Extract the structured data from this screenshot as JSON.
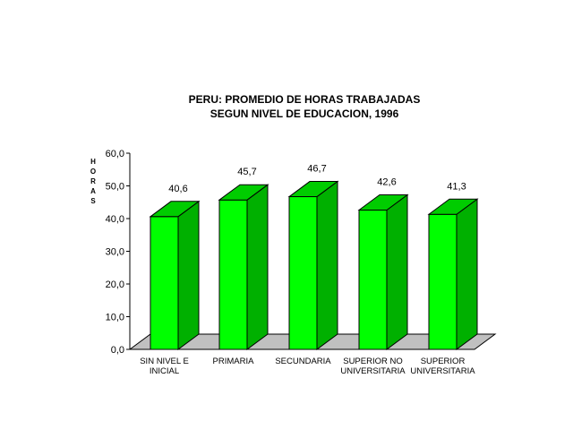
{
  "chart_data": {
    "type": "bar",
    "title": [
      "PERU: PROMEDIO DE HORAS TRABAJADAS",
      "SEGUN NIVEL DE EDUCACION, 1996"
    ],
    "ylabel": "HORAS",
    "xlabel": "",
    "categories": [
      [
        "SIN NIVEL E",
        "INICIAL"
      ],
      [
        "PRIMARIA"
      ],
      [
        "SECUNDARIA"
      ],
      [
        "SUPERIOR NO",
        "UNIVERSITARIA"
      ],
      [
        "SUPERIOR",
        "UNIVERSITARIA"
      ]
    ],
    "values": [
      40.6,
      45.7,
      46.7,
      42.6,
      41.3
    ],
    "value_labels": [
      "40,6",
      "45,7",
      "46,7",
      "42,6",
      "41,3"
    ],
    "ylim": [
      0,
      60
    ],
    "yticks": [
      "0,0",
      "10,0",
      "20,0",
      "30,0",
      "40,0",
      "50,0",
      "60,0"
    ],
    "grid": false,
    "legend": "none",
    "colors": {
      "bar_front": "#00ff00",
      "bar_side": "#00b000",
      "bar_top": "#00cc00",
      "floor": "#c0c0c0"
    }
  }
}
